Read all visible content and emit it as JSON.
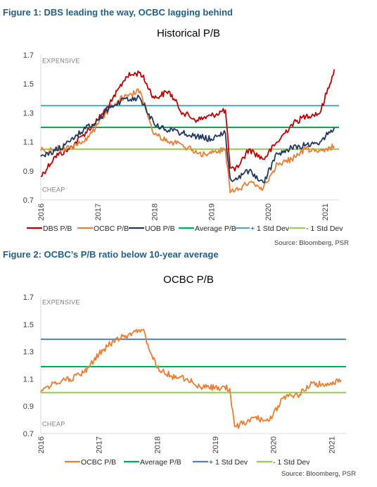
{
  "figures": [
    {
      "caption": "Figure 1: DBS leading the way, OCBC lagging behind"
    },
    {
      "caption": "Figure 2: OCBC’s P/B ratio below 10-year average"
    }
  ],
  "chart_data": [
    {
      "type": "line",
      "title": "Historical P/B",
      "xlabel": "",
      "ylabel": "",
      "ylim": [
        0.7,
        1.7
      ],
      "y_ticks": [
        "0.7",
        "0.9",
        "1.1",
        "1.3",
        "1.5",
        "1.7"
      ],
      "x_tick_labels": [
        "2016",
        "2017",
        "2018",
        "2019",
        "2020",
        "2021"
      ],
      "annotations": [
        "EXPENSIVE",
        "CHEAP"
      ],
      "source": "Source: Bloomberg, PSR",
      "grid": false,
      "legend_position": "bottom",
      "x": [
        "2016-01",
        "2016-04",
        "2016-07",
        "2016-10",
        "2017-01",
        "2017-04",
        "2017-07",
        "2017-10",
        "2018-01",
        "2018-04",
        "2018-07",
        "2018-10",
        "2019-01",
        "2019-04",
        "2019-05",
        "2019-06",
        "2019-09",
        "2019-12",
        "2020-03",
        "2020-06",
        "2020-09",
        "2020-12",
        "2021-03"
      ],
      "series": [
        {
          "name": "DBS P/B",
          "color": "#c00000",
          "style": "line",
          "values": [
            0.86,
            1.0,
            1.05,
            1.15,
            1.25,
            1.38,
            1.55,
            1.58,
            1.4,
            1.45,
            1.3,
            1.25,
            1.28,
            1.32,
            0.92,
            0.9,
            1.05,
            0.98,
            1.1,
            1.22,
            1.28,
            1.3,
            1.6
          ]
        },
        {
          "name": "OCBC P/B",
          "color": "#ed7d31",
          "style": "line",
          "values": [
            1.04,
            1.05,
            1.06,
            1.1,
            1.22,
            1.35,
            1.42,
            1.45,
            1.15,
            1.1,
            1.08,
            1.02,
            1.02,
            1.05,
            0.75,
            0.76,
            0.82,
            0.78,
            0.95,
            0.98,
            1.05,
            1.04,
            1.07
          ]
        },
        {
          "name": "UOB P/B",
          "color": "#1f3864",
          "style": "line",
          "values": [
            1.0,
            1.04,
            1.1,
            1.18,
            1.25,
            1.35,
            1.4,
            1.4,
            1.22,
            1.18,
            1.16,
            1.14,
            1.12,
            1.16,
            0.85,
            0.84,
            0.9,
            0.82,
            1.02,
            1.06,
            1.08,
            1.1,
            1.2
          ]
        },
        {
          "name": "Average P/B",
          "color": "#00b050",
          "style": "hline",
          "value": 1.2
        },
        {
          "name": "+ 1 Std Dev",
          "color": "#4bacc6",
          "style": "hline",
          "value": 1.35
        },
        {
          "name": "- 1 Std Dev",
          "color": "#92d050",
          "style": "hline",
          "value": 1.05
        }
      ]
    },
    {
      "type": "line",
      "title": "OCBC P/B",
      "xlabel": "",
      "ylabel": "",
      "ylim": [
        0.7,
        1.7
      ],
      "y_ticks": [
        "0.7",
        "0.9",
        "1.1",
        "1.3",
        "1.5",
        "1.7"
      ],
      "x_tick_labels": [
        "2016",
        "2017",
        "2018",
        "2019",
        "2020",
        "2021"
      ],
      "annotations": [
        "EXPENSIVE",
        "CHEAP"
      ],
      "source": "Source: Bloomberg, PSR",
      "grid": false,
      "legend_position": "bottom",
      "x": [
        "2016-01",
        "2016-04",
        "2016-07",
        "2016-10",
        "2017-01",
        "2017-04",
        "2017-07",
        "2017-10",
        "2018-01",
        "2018-04",
        "2018-07",
        "2018-10",
        "2019-01",
        "2019-04",
        "2019-05",
        "2019-06",
        "2019-09",
        "2019-12",
        "2020-03",
        "2020-06",
        "2020-09",
        "2020-12",
        "2021-03"
      ],
      "series": [
        {
          "name": "OCBC P/B",
          "color": "#ed7d31",
          "style": "line",
          "values": [
            1.0,
            1.08,
            1.1,
            1.15,
            1.28,
            1.38,
            1.42,
            1.46,
            1.18,
            1.12,
            1.1,
            1.04,
            1.04,
            1.03,
            0.75,
            0.76,
            0.82,
            0.79,
            0.96,
            0.98,
            1.07,
            1.05,
            1.09
          ]
        },
        {
          "name": "Average P/B",
          "color": "#00b050",
          "style": "hline",
          "value": 1.19
        },
        {
          "name": "+ 1 Std Dev",
          "color": "#4f81bd",
          "style": "hline",
          "value": 1.39
        },
        {
          "name": "- 1 Std Dev",
          "color": "#92d050",
          "style": "hline",
          "value": 1.0
        }
      ]
    }
  ]
}
